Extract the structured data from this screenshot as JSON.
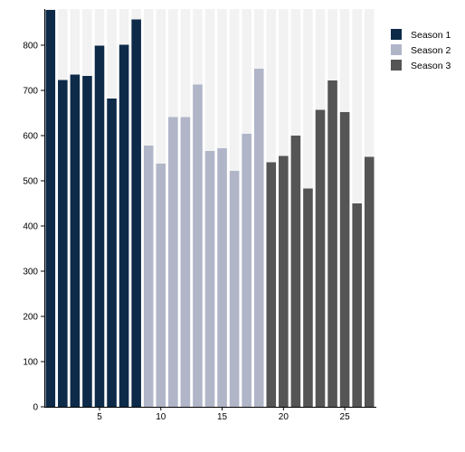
{
  "chart_data": {
    "type": "bar",
    "title": "",
    "xlabel": "",
    "ylabel": "",
    "ylim": [
      0,
      880
    ],
    "xlim": [
      0.5,
      27.5
    ],
    "x_ticks": [
      5,
      10,
      15,
      20,
      25
    ],
    "y_ticks": [
      0,
      100,
      200,
      300,
      400,
      500,
      600,
      700,
      800
    ],
    "grid": false,
    "background_columns": true,
    "legend_position": "top-right",
    "series": [
      {
        "name": "Season 1",
        "color": "#0d2a48",
        "x": [
          1,
          2,
          3,
          4,
          5,
          6,
          7,
          8
        ],
        "values": [
          878,
          723,
          735,
          732,
          799,
          682,
          801,
          857
        ]
      },
      {
        "name": "Season 2",
        "color": "#b0b5c8",
        "x": [
          9,
          10,
          11,
          12,
          13,
          14,
          15,
          16,
          17,
          18
        ],
        "values": [
          578,
          538,
          641,
          641,
          713,
          566,
          572,
          522,
          604,
          748
        ]
      },
      {
        "name": "Season 3",
        "color": "#555555",
        "x": [
          19,
          20,
          21,
          22,
          23,
          24,
          25,
          26,
          27
        ],
        "values": [
          541,
          555,
          600,
          483,
          657,
          722,
          652,
          450,
          553
        ]
      }
    ]
  }
}
